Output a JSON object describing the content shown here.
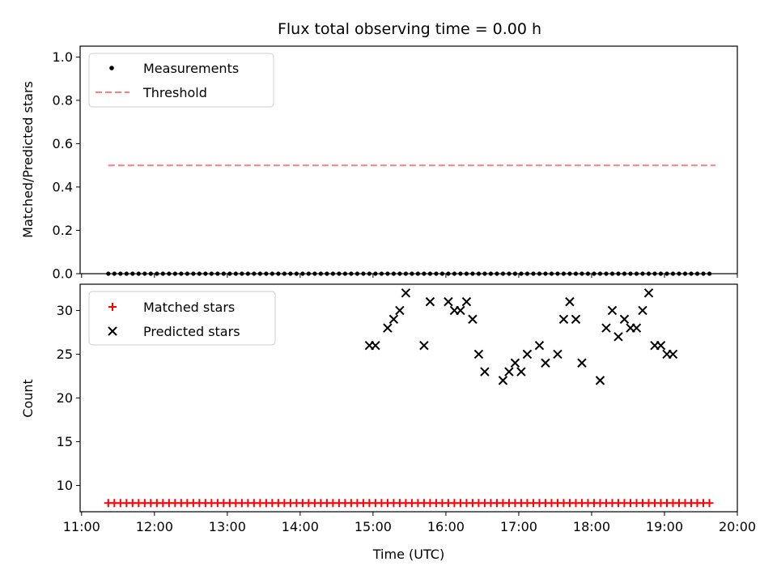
{
  "chart_data": [
    {
      "type": "scatter",
      "title": "Flux total observing time = 0.00 h",
      "xlabel": "",
      "ylabel": "Matched/Predicted stars",
      "ylim": [
        0,
        1.05
      ],
      "yticks": [
        "0.0",
        "0.2",
        "0.4",
        "0.6",
        "0.8",
        "1.0"
      ],
      "legend": "top-left",
      "series": [
        {
          "name": "Measurements",
          "color": "#000000",
          "marker": "dot",
          "x": [
            "11:22",
            "11:27",
            "11:32",
            "11:37",
            "11:42",
            "11:47",
            "11:52",
            "11:57",
            "12:02",
            "12:07",
            "12:12",
            "12:17",
            "12:22",
            "12:27",
            "12:32",
            "12:37",
            "12:42",
            "12:47",
            "12:52",
            "12:57",
            "13:02",
            "13:07",
            "13:12",
            "13:17",
            "13:22",
            "13:27",
            "13:32",
            "13:37",
            "13:42",
            "13:47",
            "13:52",
            "13:57",
            "14:02",
            "14:07",
            "14:12",
            "14:17",
            "14:22",
            "14:27",
            "14:32",
            "14:37",
            "14:42",
            "14:47",
            "14:52",
            "14:57",
            "15:02",
            "15:07",
            "15:12",
            "15:17",
            "15:22",
            "15:27",
            "15:32",
            "15:37",
            "15:42",
            "15:47",
            "15:52",
            "15:57",
            "16:02",
            "16:07",
            "16:12",
            "16:17",
            "16:22",
            "16:27",
            "16:32",
            "16:37",
            "16:42",
            "16:47",
            "16:52",
            "16:57",
            "17:02",
            "17:07",
            "17:12",
            "17:17",
            "17:22",
            "17:27",
            "17:32",
            "17:37",
            "17:42",
            "17:47",
            "17:52",
            "17:57",
            "18:02",
            "18:07",
            "18:12",
            "18:17",
            "18:22",
            "18:27",
            "18:32",
            "18:37",
            "18:42",
            "18:47",
            "18:52",
            "18:57",
            "19:02",
            "19:07",
            "19:12",
            "19:17",
            "19:22",
            "19:27",
            "19:32",
            "19:37"
          ],
          "y": [
            0,
            0,
            0,
            0,
            0,
            0,
            0,
            0,
            0,
            0,
            0,
            0,
            0,
            0,
            0,
            0,
            0,
            0,
            0,
            0,
            0,
            0,
            0,
            0,
            0,
            0,
            0,
            0,
            0,
            0,
            0,
            0,
            0,
            0,
            0,
            0,
            0,
            0,
            0,
            0,
            0,
            0,
            0,
            0,
            0,
            0,
            0,
            0,
            0,
            0,
            0,
            0,
            0,
            0,
            0,
            0,
            0,
            0,
            0,
            0,
            0,
            0,
            0,
            0,
            0,
            0,
            0,
            0,
            0,
            0,
            0,
            0,
            0,
            0,
            0,
            0,
            0,
            0,
            0,
            0,
            0,
            0,
            0,
            0,
            0,
            0,
            0,
            0,
            0,
            0,
            0,
            0,
            0,
            0,
            0,
            0,
            0,
            0,
            0,
            0
          ]
        },
        {
          "name": "Threshold",
          "color": "#ff7f7f",
          "style": "dashed",
          "x": [
            "11:22",
            "19:42"
          ],
          "y": [
            0.5,
            0.5
          ]
        }
      ]
    },
    {
      "type": "scatter",
      "title": "",
      "xlabel": "Time (UTC)",
      "ylabel": "Count",
      "ylim": [
        7,
        33
      ],
      "yticks": [
        "10",
        "15",
        "20",
        "25",
        "30"
      ],
      "xticks": [
        "11:00",
        "12:00",
        "13:00",
        "14:00",
        "15:00",
        "16:00",
        "17:00",
        "18:00",
        "19:00",
        "20:00"
      ],
      "legend": "top-left",
      "series": [
        {
          "name": "Matched stars",
          "color": "#ff0000",
          "marker": "plus",
          "x": [
            "11:22",
            "11:27",
            "11:32",
            "11:37",
            "11:42",
            "11:47",
            "11:52",
            "11:57",
            "12:02",
            "12:07",
            "12:12",
            "12:17",
            "12:22",
            "12:27",
            "12:32",
            "12:37",
            "12:42",
            "12:47",
            "12:52",
            "12:57",
            "13:02",
            "13:07",
            "13:12",
            "13:17",
            "13:22",
            "13:27",
            "13:32",
            "13:37",
            "13:42",
            "13:47",
            "13:52",
            "13:57",
            "14:02",
            "14:07",
            "14:12",
            "14:17",
            "14:22",
            "14:27",
            "14:32",
            "14:37",
            "14:42",
            "14:47",
            "14:52",
            "14:57",
            "15:02",
            "15:07",
            "15:12",
            "15:17",
            "15:22",
            "15:27",
            "15:32",
            "15:37",
            "15:42",
            "15:47",
            "15:52",
            "15:57",
            "16:02",
            "16:07",
            "16:12",
            "16:17",
            "16:22",
            "16:27",
            "16:32",
            "16:37",
            "16:42",
            "16:47",
            "16:52",
            "16:57",
            "17:02",
            "17:07",
            "17:12",
            "17:17",
            "17:22",
            "17:27",
            "17:32",
            "17:37",
            "17:42",
            "17:47",
            "17:52",
            "17:57",
            "18:02",
            "18:07",
            "18:12",
            "18:17",
            "18:22",
            "18:27",
            "18:32",
            "18:37",
            "18:42",
            "18:47",
            "18:52",
            "18:57",
            "19:02",
            "19:07",
            "19:12",
            "19:17",
            "19:22",
            "19:27",
            "19:32",
            "19:37"
          ],
          "y": [
            8,
            8,
            8,
            8,
            8,
            8,
            8,
            8,
            8,
            8,
            8,
            8,
            8,
            8,
            8,
            8,
            8,
            8,
            8,
            8,
            8,
            8,
            8,
            8,
            8,
            8,
            8,
            8,
            8,
            8,
            8,
            8,
            8,
            8,
            8,
            8,
            8,
            8,
            8,
            8,
            8,
            8,
            8,
            8,
            8,
            8,
            8,
            8,
            8,
            8,
            8,
            8,
            8,
            8,
            8,
            8,
            8,
            8,
            8,
            8,
            8,
            8,
            8,
            8,
            8,
            8,
            8,
            8,
            8,
            8,
            8,
            8,
            8,
            8,
            8,
            8,
            8,
            8,
            8,
            8,
            8,
            8,
            8,
            8,
            8,
            8,
            8,
            8,
            8,
            8,
            8,
            8,
            8,
            8,
            8,
            8,
            8,
            8,
            8,
            8
          ]
        },
        {
          "name": "Predicted stars",
          "color": "#000000",
          "marker": "x",
          "x": [
            "14:57",
            "15:02",
            "15:12",
            "15:17",
            "15:22",
            "15:27",
            "15:42",
            "15:47",
            "16:02",
            "16:07",
            "16:12",
            "16:17",
            "16:22",
            "16:27",
            "16:32",
            "16:47",
            "16:52",
            "16:57",
            "17:02",
            "17:07",
            "17:17",
            "17:22",
            "17:32",
            "17:37",
            "17:42",
            "17:47",
            "17:52",
            "18:07",
            "18:12",
            "18:17",
            "18:22",
            "18:27",
            "18:32",
            "18:37",
            "18:42",
            "18:47",
            "18:52",
            "18:57",
            "19:02",
            "19:07"
          ],
          "y": [
            26,
            26,
            28,
            29,
            30,
            32,
            26,
            31,
            31,
            30,
            30,
            31,
            29,
            25,
            23,
            22,
            23,
            24,
            23,
            25,
            26,
            24,
            25,
            29,
            31,
            29,
            24,
            22,
            28,
            30,
            27,
            29,
            28,
            28,
            30,
            32,
            26,
            26,
            25,
            25
          ]
        }
      ]
    }
  ]
}
